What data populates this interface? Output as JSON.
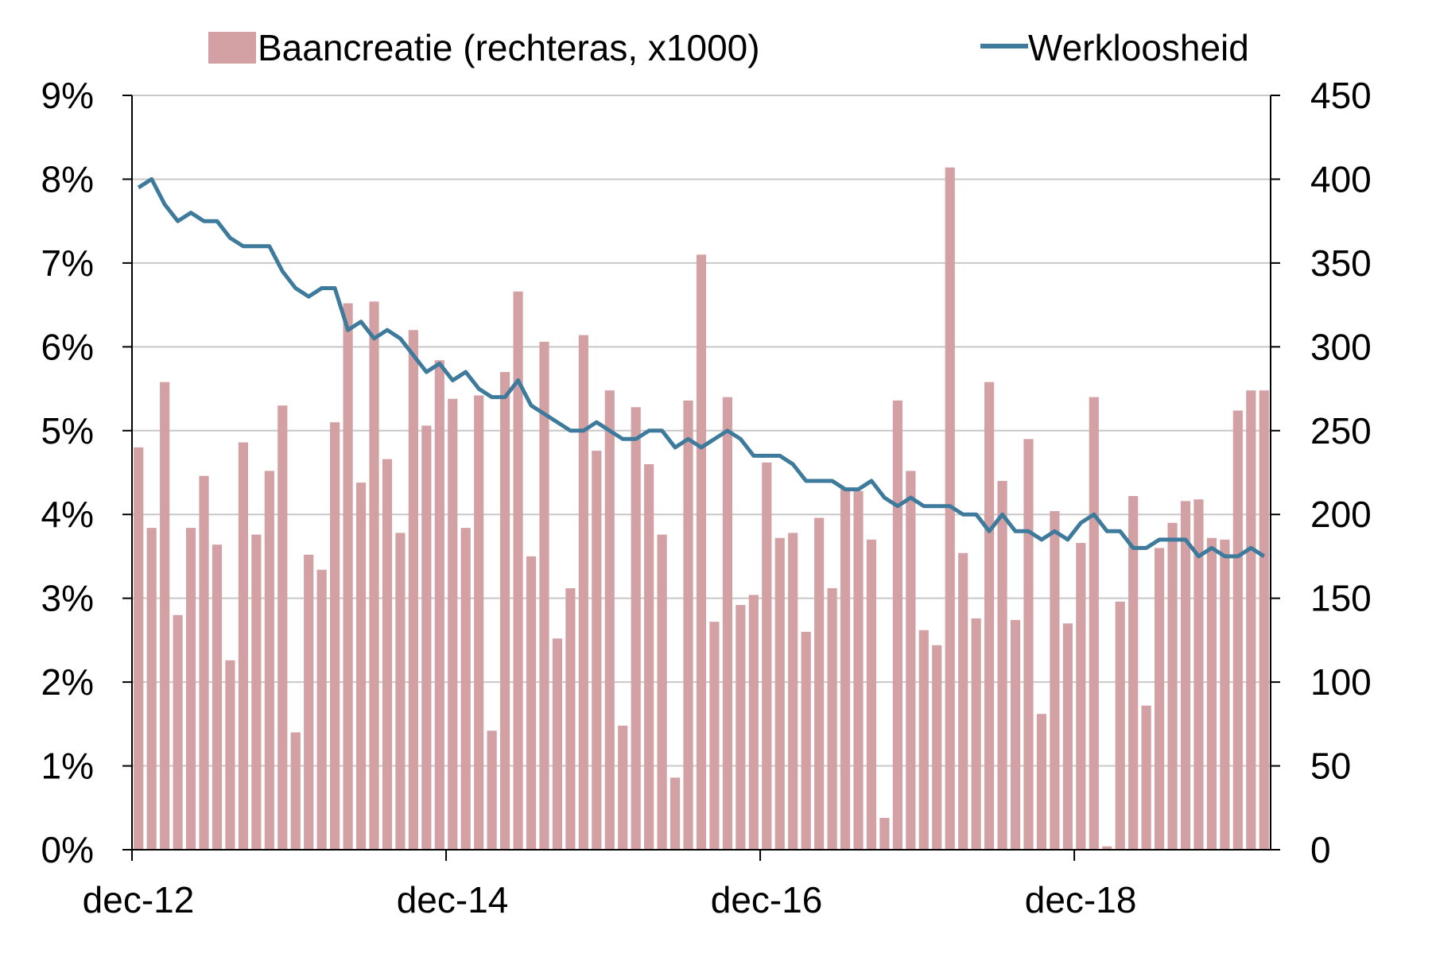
{
  "chart_data": {
    "type": "bar",
    "title": "",
    "xlabel": "",
    "ylabel": "",
    "legend": {
      "placement": "top"
    },
    "grid": true,
    "colors": {
      "bars": "#d3a1a4",
      "line": "#3d7a9b",
      "grid": "#c8c8c8",
      "axis": "#000000"
    },
    "x_start": "dec-12",
    "x_tick_labels": [
      "dec-12",
      "dec-14",
      "dec-16",
      "dec-18"
    ],
    "y_left": {
      "ylim": [
        0,
        9
      ],
      "tick_labels": [
        "0%",
        "1%",
        "2%",
        "3%",
        "4%",
        "5%",
        "6%",
        "7%",
        "8%",
        "9%"
      ]
    },
    "y_right": {
      "ylim": [
        0,
        450
      ],
      "tick_labels": [
        "0",
        "50",
        "100",
        "150",
        "200",
        "250",
        "300",
        "350",
        "400",
        "450"
      ]
    },
    "series": [
      {
        "name": "Baancreatie (rechteras, x1000)",
        "type": "bar",
        "axis": "right",
        "values": [
          240,
          192,
          279,
          140,
          192,
          223,
          182,
          113,
          243,
          188,
          226,
          265,
          70,
          176,
          167,
          255,
          326,
          219,
          327,
          233,
          189,
          310,
          253,
          292,
          269,
          192,
          271,
          71,
          285,
          333,
          175,
          303,
          126,
          156,
          307,
          238,
          274,
          74,
          264,
          230,
          188,
          43,
          268,
          355,
          136,
          270,
          146,
          152,
          231,
          186,
          189,
          130,
          198,
          156,
          216,
          214,
          185,
          19,
          268,
          226,
          131,
          122,
          407,
          177,
          138,
          279,
          220,
          137,
          245,
          81,
          202,
          135,
          183,
          270,
          2,
          148,
          211,
          86,
          180,
          195,
          208,
          209,
          186,
          185,
          262,
          274,
          274
        ]
      },
      {
        "name": "Werkloosheid",
        "type": "line",
        "axis": "left",
        "values": [
          7.9,
          8.0,
          7.7,
          7.5,
          7.6,
          7.5,
          7.5,
          7.3,
          7.2,
          7.2,
          7.2,
          6.9,
          6.7,
          6.6,
          6.7,
          6.7,
          6.2,
          6.3,
          6.1,
          6.2,
          6.1,
          5.9,
          5.7,
          5.8,
          5.6,
          5.7,
          5.5,
          5.4,
          5.4,
          5.6,
          5.3,
          5.2,
          5.1,
          5.0,
          5.0,
          5.1,
          5.0,
          4.9,
          4.9,
          5.0,
          5.0,
          4.8,
          4.9,
          4.8,
          4.9,
          5.0,
          4.9,
          4.7,
          4.7,
          4.7,
          4.6,
          4.4,
          4.4,
          4.4,
          4.3,
          4.3,
          4.4,
          4.2,
          4.1,
          4.2,
          4.1,
          4.1,
          4.1,
          4.0,
          4.0,
          3.8,
          4.0,
          3.8,
          3.8,
          3.7,
          3.8,
          3.7,
          3.9,
          4.0,
          3.8,
          3.8,
          3.6,
          3.6,
          3.7,
          3.7,
          3.7,
          3.5,
          3.6,
          3.5,
          3.5,
          3.6,
          3.5
        ]
      }
    ]
  }
}
